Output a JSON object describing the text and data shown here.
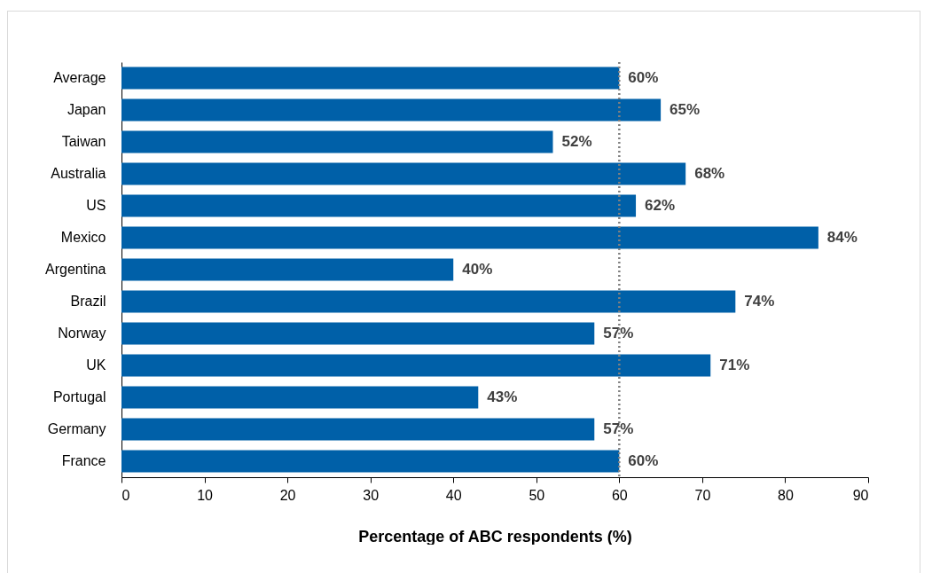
{
  "chart_data": {
    "type": "bar",
    "orientation": "horizontal",
    "xlabel": "Percentage of ABC respondents (%)",
    "categories": [
      "Average",
      "Japan",
      "Taiwan",
      "Australia",
      "US",
      "Mexico",
      "Argentina",
      "Brazil",
      "Norway",
      "UK",
      "Portugal",
      "Germany",
      "France"
    ],
    "values": [
      60,
      65,
      52,
      68,
      62,
      84,
      40,
      74,
      57,
      71,
      43,
      57,
      60
    ],
    "value_labels": [
      "60%",
      "65%",
      "52%",
      "68%",
      "62%",
      "84%",
      "40%",
      "74%",
      "57%",
      "71%",
      "43%",
      "57%",
      "60%"
    ],
    "color": "#0060a8",
    "xlim": [
      0,
      90
    ],
    "xticks": [
      0,
      10,
      20,
      30,
      40,
      50,
      60,
      70,
      80,
      90
    ],
    "ref_lines": [
      {
        "axis": "x",
        "value": 60,
        "color": "#808080",
        "line_style": "dotted"
      }
    ],
    "grid": false
  }
}
